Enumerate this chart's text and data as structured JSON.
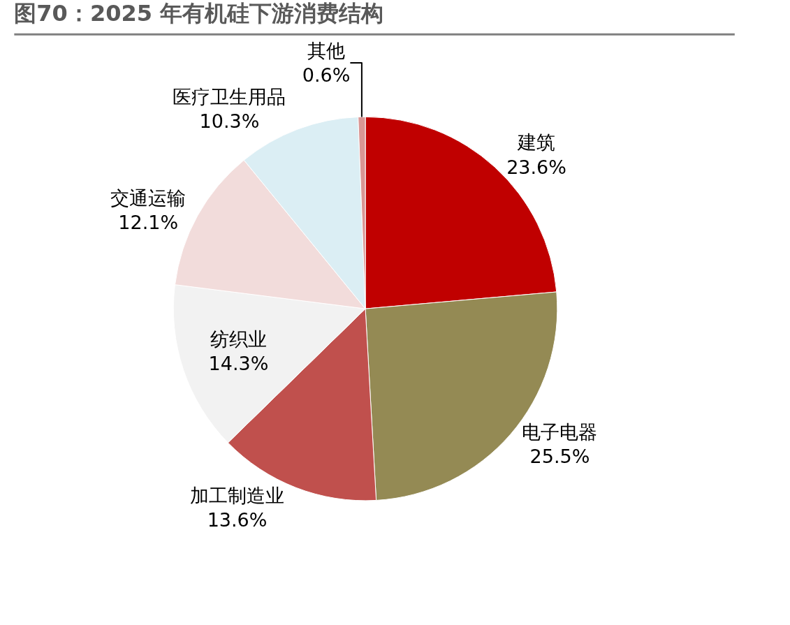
{
  "chart_data": {
    "type": "pie",
    "title": "图70：2025 年有机硅下游消费结构",
    "categories": [
      "建筑",
      "电子电器",
      "加工制造业",
      "纺织业",
      "交通运输",
      "医疗卫生用品",
      "其他"
    ],
    "values": [
      23.6,
      25.5,
      13.6,
      14.3,
      12.1,
      10.3,
      0.6
    ],
    "value_labels": [
      "23.6%",
      "25.5%",
      "13.6%",
      "14.3%",
      "12.1%",
      "10.3%",
      "0.6%"
    ],
    "colors": [
      "#c00000",
      "#948a54",
      "#c0504d",
      "#f2f2f2",
      "#f2dcdb",
      "#dbeef4",
      "#d99694"
    ],
    "legend": false
  }
}
